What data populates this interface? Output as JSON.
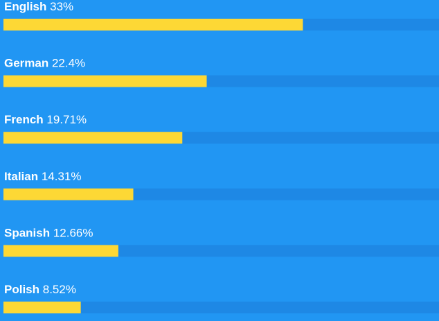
{
  "chart_data": {
    "type": "bar",
    "orientation": "horizontal",
    "categories": [
      "English",
      "German",
      "French",
      "Italian",
      "Spanish",
      "Polish"
    ],
    "values": [
      33,
      22.4,
      19.71,
      14.31,
      12.66,
      8.52
    ],
    "value_labels": [
      "33%",
      "22.4%",
      "19.71%",
      "14.31%",
      "12.66%",
      "8.52%"
    ],
    "xlim": [
      0,
      48
    ],
    "color": "#fdd835",
    "track_color": "#1e88e5",
    "background": "#2196f3"
  }
}
